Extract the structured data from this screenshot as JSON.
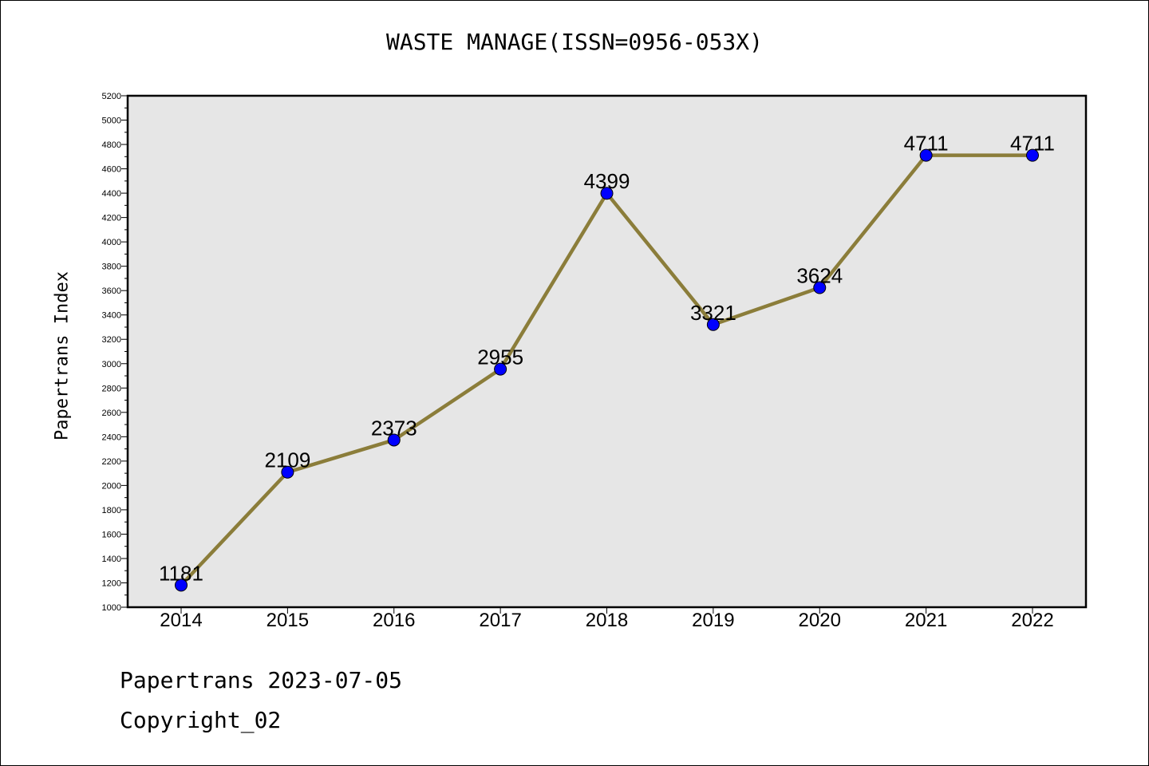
{
  "chart_data": {
    "type": "line",
    "title": "WASTE MANAGE(ISSN=0956-053X)",
    "xlabel": "",
    "ylabel": "Papertrans Index",
    "categories": [
      "2014",
      "2015",
      "2016",
      "2017",
      "2018",
      "2019",
      "2020",
      "2021",
      "2022"
    ],
    "series": [
      {
        "values": [
          1181,
          2109,
          2373,
          2955,
          4399,
          3321,
          3624,
          4711,
          4711
        ]
      }
    ],
    "ylim": [
      1000,
      5200
    ],
    "ytick_step": 200,
    "grid": false,
    "line_color": "#8b7d3a",
    "marker_color": "#0000ff",
    "plot_background": "#e6e6e6"
  },
  "footer": {
    "line1": "Papertrans 2023-07-05",
    "line2": "Copyright_02"
  }
}
